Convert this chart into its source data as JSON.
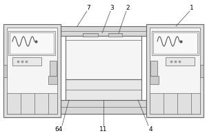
{
  "bg_color": "#ffffff",
  "lc": "#666666",
  "lc_thin": "#888888",
  "fc_light": "#f0f0f0",
  "fc_mid": "#d8d8d8",
  "fc_white": "#fafafa",
  "label_fontsize": 6.5,
  "ann_lw": 0.5
}
